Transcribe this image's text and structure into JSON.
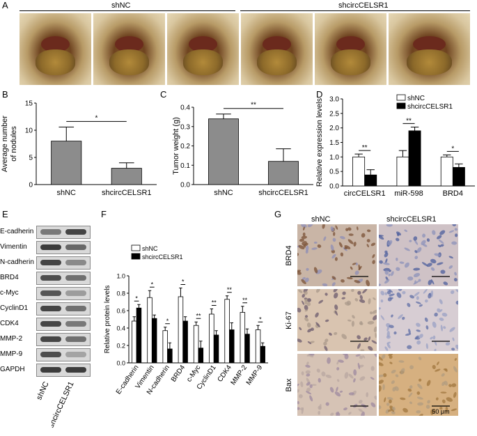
{
  "panels": {
    "A": "A",
    "B": "B",
    "C": "C",
    "D": "D",
    "E": "E",
    "F": "F",
    "G": "G"
  },
  "panelA": {
    "group1": "shNC",
    "group2": "shcircCELSR1"
  },
  "chart_data": [
    {
      "id": "B",
      "type": "bar",
      "categories": [
        "shNC",
        "shcircCELSR1"
      ],
      "values": [
        8.0,
        3.0
      ],
      "errors": [
        2.6,
        1.0
      ],
      "ylabel": "Average number of nodules",
      "ylim": [
        0,
        15
      ],
      "yticks": [
        0,
        5,
        10,
        15
      ],
      "significance": "*"
    },
    {
      "id": "C",
      "type": "bar",
      "categories": [
        "shNC",
        "shcircCELSR1"
      ],
      "values": [
        0.34,
        0.12
      ],
      "errors": [
        0.025,
        0.065
      ],
      "ylabel": "Tumor weight (g)",
      "ylim": [
        0,
        0.4
      ],
      "yticks": [
        0,
        0.1,
        0.2,
        0.3,
        0.4
      ],
      "ytick_labels": [
        "0.0",
        "0.1",
        "0.2",
        "0.3",
        "0.4"
      ],
      "significance": "**"
    },
    {
      "id": "D",
      "type": "bar",
      "categories": [
        "circCELSR1",
        "miR-598",
        "BRD4"
      ],
      "series": [
        {
          "name": "shNC",
          "values": [
            1.0,
            1.0,
            1.0
          ],
          "errors": [
            0.1,
            0.22,
            0.07
          ]
        },
        {
          "name": "shcircCELSR1",
          "values": [
            0.38,
            1.9,
            0.64
          ],
          "errors": [
            0.18,
            0.13,
            0.12
          ]
        }
      ],
      "ylabel": "Relative expression levels",
      "ylim": [
        0,
        3.0
      ],
      "yticks": [
        0,
        0.5,
        1.0,
        1.5,
        2.0,
        2.5,
        3.0
      ],
      "ytick_labels": [
        "0.0",
        "0.5",
        "1.0",
        "1.5",
        "2.0",
        "2.5",
        "3.0"
      ],
      "significance": [
        "**",
        "**",
        "*"
      ],
      "legend": "top-right"
    },
    {
      "id": "F",
      "type": "bar",
      "categories": [
        "E-cadherin",
        "Vimentin",
        "N-cadherin",
        "BRD4",
        "c-Myc",
        "CyclinD1",
        "CDK4",
        "MMP-2",
        "MMP-9"
      ],
      "series": [
        {
          "name": "shNC",
          "values": [
            0.48,
            0.75,
            0.37,
            0.76,
            0.43,
            0.56,
            0.73,
            0.58,
            0.38
          ],
          "errors": [
            0.05,
            0.08,
            0.04,
            0.1,
            0.04,
            0.06,
            0.04,
            0.07,
            0.05
          ]
        },
        {
          "name": "shcircCELSR1",
          "values": [
            0.63,
            0.51,
            0.16,
            0.48,
            0.17,
            0.32,
            0.38,
            0.33,
            0.19
          ],
          "errors": [
            0.04,
            0.04,
            0.07,
            0.05,
            0.08,
            0.05,
            0.08,
            0.06,
            0.04
          ]
        }
      ],
      "ylabel": "Relative protein levels",
      "ylim": [
        0,
        1.0
      ],
      "yticks": [
        0,
        0.2,
        0.4,
        0.6,
        0.8,
        1.0
      ],
      "ytick_labels": [
        "0.0",
        "0.2",
        "0.4",
        "0.6",
        "0.8",
        "1.0"
      ],
      "significance": [
        "*",
        "*",
        "*",
        "*",
        "**",
        "**",
        "**",
        "**",
        "*"
      ],
      "legend": "top-left"
    }
  ],
  "panelE": {
    "rows": [
      "E-cadherin",
      "Vimentin",
      "N-cadherin",
      "BRD4",
      "c-Myc",
      "CyclinD1",
      "CDK4",
      "MMP-2",
      "MMP-9",
      "GAPDH"
    ],
    "lanes": [
      "shNC",
      "shcircCELSR1"
    ],
    "band_intensity": [
      [
        0.55,
        0.85
      ],
      [
        0.9,
        0.65
      ],
      [
        0.85,
        0.45
      ],
      [
        0.8,
        0.6
      ],
      [
        0.75,
        0.35
      ],
      [
        0.85,
        0.6
      ],
      [
        0.85,
        0.55
      ],
      [
        0.85,
        0.6
      ],
      [
        0.8,
        0.3
      ],
      [
        0.9,
        0.9
      ]
    ]
  },
  "panelG": {
    "columns": [
      "shNC",
      "shcircCELSR1"
    ],
    "rows": [
      "BRD4",
      "Ki-67",
      "Bax"
    ],
    "scale_bar": "50 μm"
  }
}
